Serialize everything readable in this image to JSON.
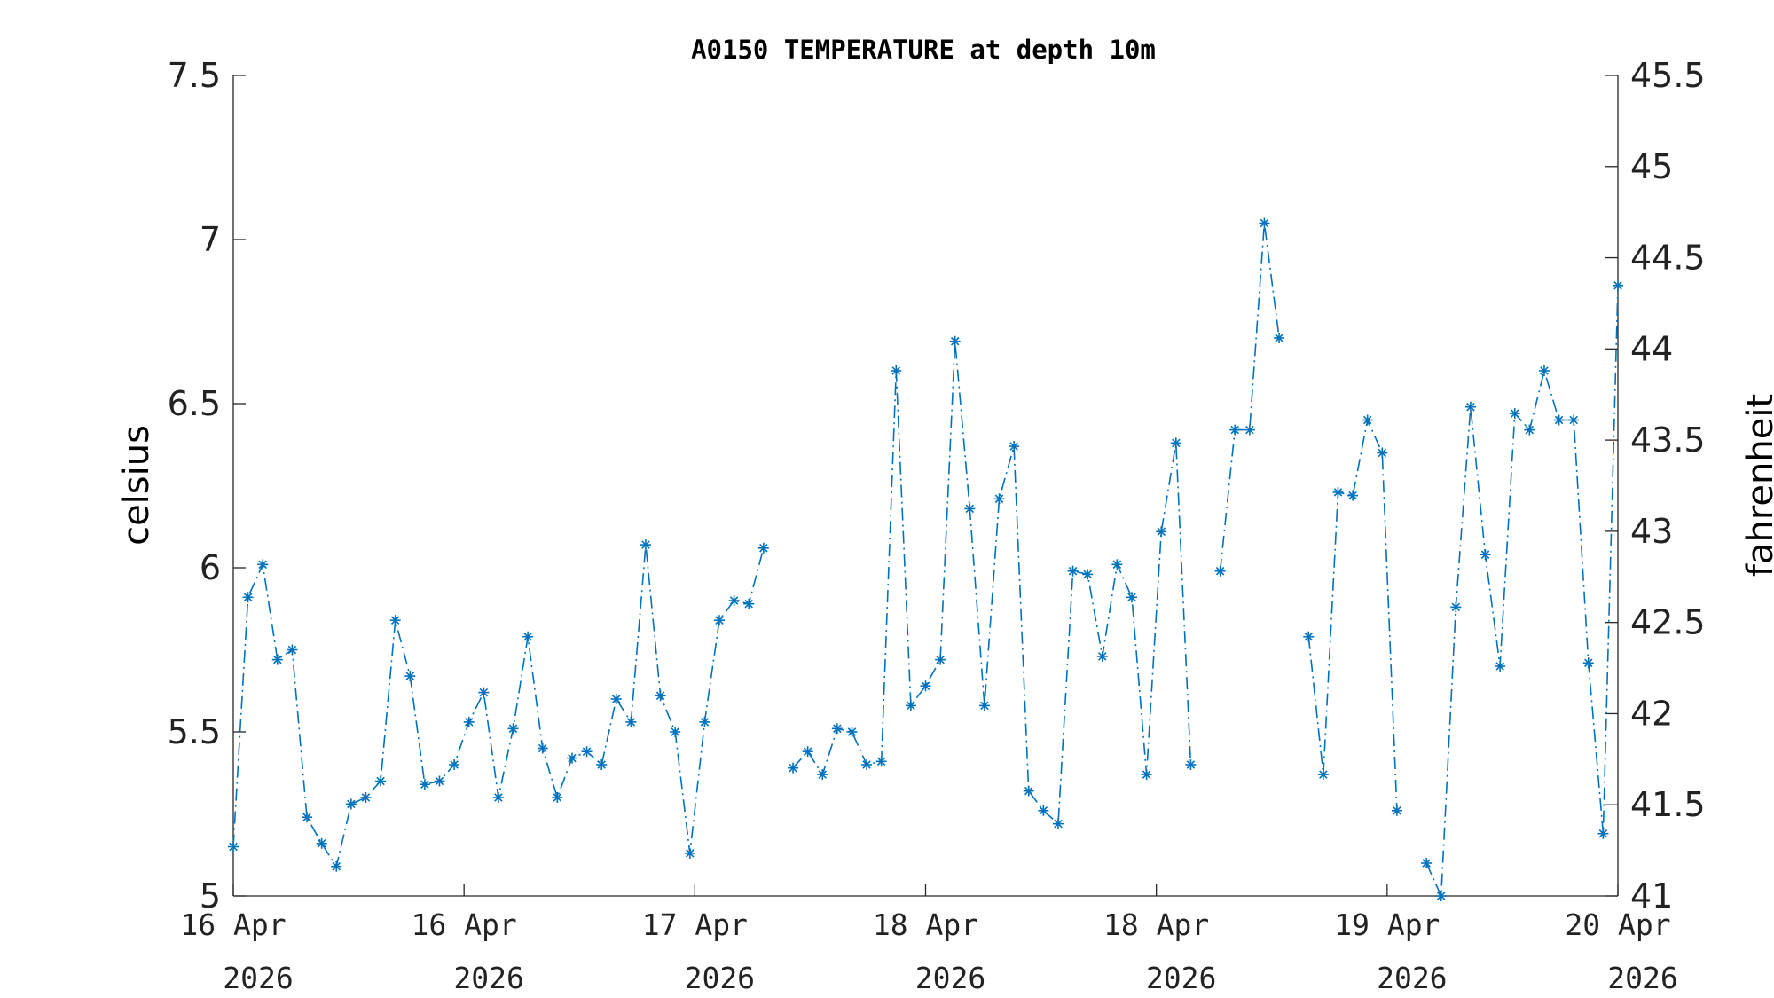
{
  "chart_data": {
    "type": "line",
    "title": "A0150 TEMPERATURE at depth 10m",
    "ylabel": "celsius",
    "ylabel_right": "fahrenheit",
    "ylim": [
      5,
      7.5
    ],
    "ylim_right": [
      41,
      45.5
    ],
    "yticks": [
      "5",
      "5.5",
      "6",
      "6.5",
      "7",
      "7.5"
    ],
    "yticks_right": [
      "41",
      "41.5",
      "42",
      "42.5",
      "43",
      "43.5",
      "44",
      "44.5",
      "45",
      "45.5"
    ],
    "xlim_days": [
      0,
      4
    ],
    "xticks": [
      {
        "day": "16 Apr",
        "year": "2026"
      },
      {
        "day": "16 Apr",
        "year": "2026"
      },
      {
        "day": "17 Apr",
        "year": "2026"
      },
      {
        "day": "18 Apr",
        "year": "2026"
      },
      {
        "day": "18 Apr",
        "year": "2026"
      },
      {
        "day": "19 Apr",
        "year": "2026"
      },
      {
        "day": "20 Apr",
        "year": "2026"
      }
    ],
    "marker": "*",
    "line_style": "dash-dot",
    "grid": false,
    "color": "#0072BD",
    "series": [
      {
        "values": [
          5.15,
          5.91,
          6.01,
          5.72,
          5.75,
          5.24,
          5.16,
          5.09,
          5.28,
          5.3,
          5.35,
          5.84,
          5.67,
          5.34,
          5.35,
          5.4,
          5.53,
          5.62,
          5.3,
          5.51,
          5.79,
          5.45,
          5.3,
          5.42,
          5.44,
          5.4,
          5.6,
          5.53,
          6.07,
          5.61,
          5.5,
          5.13,
          5.53,
          5.84,
          5.9,
          5.89,
          6.06,
          null,
          5.39,
          5.44,
          5.37,
          5.51,
          5.5,
          5.4,
          5.41,
          6.6,
          5.58,
          5.64,
          5.72,
          6.69,
          6.18,
          5.58,
          6.21,
          6.37,
          5.32,
          5.26,
          5.22,
          5.99,
          5.98,
          5.73,
          6.01,
          5.91,
          5.37,
          6.11,
          6.38,
          5.4,
          null,
          5.99,
          6.42,
          6.42,
          7.05,
          6.7,
          null,
          5.79,
          5.37,
          6.23,
          6.22,
          6.45,
          6.35,
          5.26,
          null,
          5.1,
          5.0,
          5.88,
          6.49,
          6.04,
          5.7,
          6.47,
          6.42,
          6.6,
          6.45,
          6.45,
          5.71,
          5.19,
          6.86
        ]
      }
    ]
  }
}
